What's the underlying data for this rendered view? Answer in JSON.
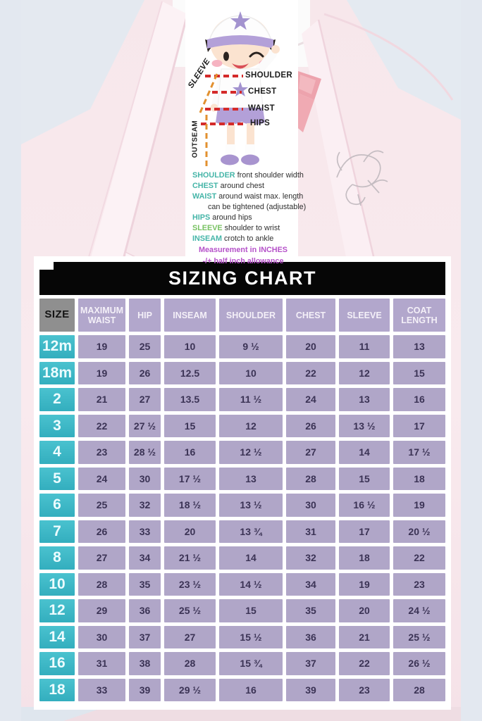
{
  "photo": {
    "description": "pale pink boys suit on light blue-gray backdrop",
    "suit_color": "#f8e8ec",
    "tie_color": "#eda3ad",
    "backdrop_color": "#e3e8f0"
  },
  "diagram": {
    "labels": {
      "shoulder": "SHOULDER",
      "chest": "CHEST",
      "waist": "WAIST",
      "hips": "HIPS",
      "sleeve": "SLEEVE",
      "outseam": "OUTSEAM"
    },
    "line_colors": {
      "horizontal": "#d42a2a",
      "diagonal": "#e2902f"
    }
  },
  "legend": {
    "entries": [
      {
        "term": "SHOULDER",
        "desc": "front shoulder width",
        "color": "#45b5a8"
      },
      {
        "term": "CHEST",
        "desc": "around chest",
        "color": "#45b5a8"
      },
      {
        "term": "WAIST",
        "desc": "around waist max. length",
        "desc2": "can be tightened (adjustable)",
        "color": "#45b5a8"
      },
      {
        "term": "HIPS",
        "desc": "around hips",
        "color": "#45b5a8"
      },
      {
        "term": "SLEEVE",
        "desc": "shoulder to wrist",
        "color": "#78c262"
      },
      {
        "term": "INSEAM",
        "desc": "crotch to ankle",
        "color": "#45b5a8"
      }
    ],
    "note1": "Measurement in INCHES",
    "note2": "-/+ half inch allowance",
    "note_color": "#b551c9"
  },
  "table": {
    "title": "SIZING CHART",
    "columns": [
      "SIZE",
      "MAXIMUM WAIST",
      "HIP",
      "INSEAM",
      "SHOULDER",
      "CHEST",
      "SLEEVE",
      "COAT LENGTH"
    ],
    "rows": [
      {
        "size": "12m",
        "values": [
          "19",
          "25",
          "10",
          "9 ½",
          "20",
          "11",
          "13"
        ]
      },
      {
        "size": "18m",
        "values": [
          "19",
          "26",
          "12.5",
          "10",
          "22",
          "12",
          "15"
        ]
      },
      {
        "size": "2",
        "values": [
          "21",
          "27",
          "13.5",
          "11 ½",
          "24",
          "13",
          "16"
        ]
      },
      {
        "size": "3",
        "values": [
          "22",
          "27 ½",
          "15",
          "12",
          "26",
          "13 ½",
          "17"
        ]
      },
      {
        "size": "4",
        "values": [
          "23",
          "28 ½",
          "16",
          "12 ½",
          "27",
          "14",
          "17 ½"
        ]
      },
      {
        "size": "5",
        "values": [
          "24",
          "30",
          "17 ½",
          "13",
          "28",
          "15",
          "18"
        ]
      },
      {
        "size": "6",
        "values": [
          "25",
          "32",
          "18 ½",
          "13 ½",
          "30",
          "16 ½",
          "19"
        ]
      },
      {
        "size": "7",
        "values": [
          "26",
          "33",
          "20",
          "13 ¾",
          "31",
          "17",
          "20 ½"
        ]
      },
      {
        "size": "8",
        "values": [
          "27",
          "34",
          "21 ½",
          "14",
          "32",
          "18",
          "22"
        ]
      },
      {
        "size": "10",
        "values": [
          "28",
          "35",
          "23 ½",
          "14 ½",
          "34",
          "19",
          "23"
        ]
      },
      {
        "size": "12",
        "values": [
          "29",
          "36",
          "25 ½",
          "15",
          "35",
          "20",
          "24 ½"
        ]
      },
      {
        "size": "14",
        "values": [
          "30",
          "37",
          "27",
          "15 ½",
          "36",
          "21",
          "25 ½"
        ]
      },
      {
        "size": "16",
        "values": [
          "31",
          "38",
          "28",
          "15 ¾",
          "37",
          "22",
          "26 ½"
        ]
      },
      {
        "size": "18",
        "values": [
          "33",
          "39",
          "29 ½",
          "16",
          "39",
          "23",
          "28"
        ]
      }
    ],
    "colors": {
      "header_bg": "#b2a7cc",
      "size_header_bg": "#8f8f8f",
      "size_cell_bg": "#3fb9c7",
      "value_cell_bg": "#b0a6c8",
      "value_text": "#3b3355",
      "title_bg": "#060606"
    }
  }
}
